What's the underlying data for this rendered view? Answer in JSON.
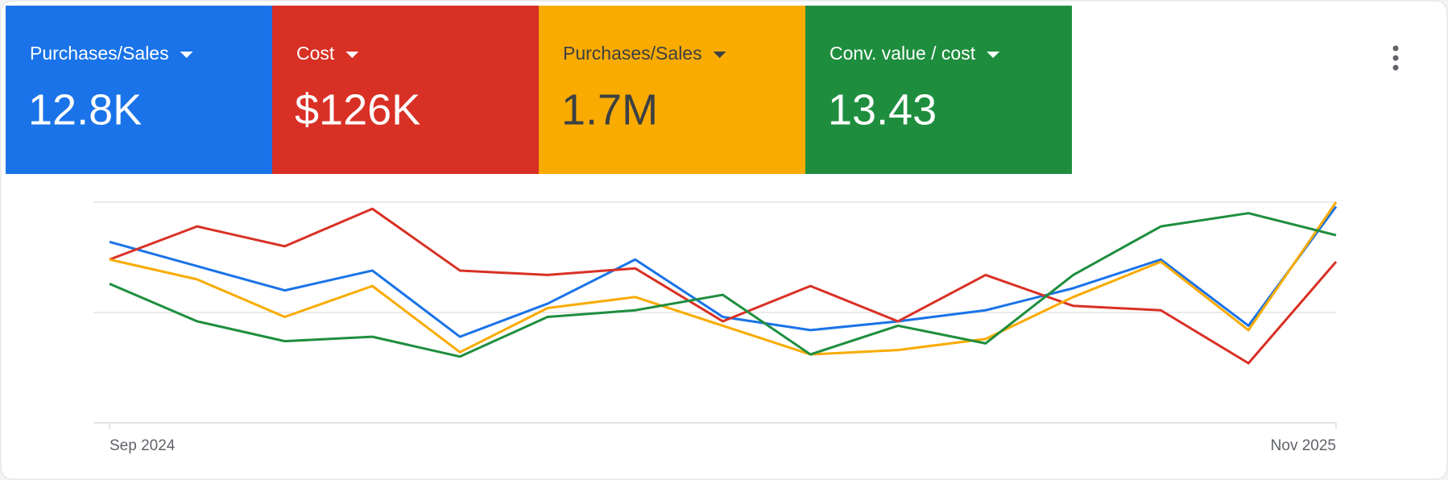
{
  "tiles": [
    {
      "label": "Purchases/Sales",
      "value": "12.8K",
      "color": "#1a73e8",
      "text_color": "#ffffff"
    },
    {
      "label": "Cost",
      "value": "$126K",
      "color": "#d93025",
      "text_color": "#ffffff"
    },
    {
      "label": "Purchases/Sales",
      "value": "1.7M",
      "color": "#f9ab00",
      "text_color": "#3c4043"
    },
    {
      "label": "Conv. value / cost",
      "value": "13.43",
      "color": "#1e8e3e",
      "text_color": "#ffffff"
    }
  ],
  "chart_data": {
    "type": "line",
    "categories": [
      "Sep 2024",
      null,
      null,
      null,
      null,
      null,
      null,
      null,
      null,
      null,
      null,
      null,
      null,
      null,
      "Nov 2025"
    ],
    "series": [
      {
        "color": "#1a73e8",
        "values": [
          82,
          71,
          60,
          69,
          39,
          54,
          74,
          48,
          42,
          46,
          51,
          61,
          74,
          44,
          98
        ]
      },
      {
        "color": "#d93025",
        "values": [
          74,
          89,
          80,
          97,
          69,
          67,
          70,
          46,
          62,
          46,
          67,
          53,
          51,
          27,
          73
        ]
      },
      {
        "color": "#f9ab00",
        "values": [
          74,
          65,
          48,
          62,
          32,
          52,
          57,
          44,
          31,
          33,
          38,
          57,
          73,
          42,
          100
        ]
      },
      {
        "color": "#1e8e3e",
        "values": [
          63,
          46,
          37,
          39,
          30,
          48,
          51,
          58,
          31,
          44,
          36,
          67,
          89,
          95,
          85
        ]
      }
    ],
    "ylim": [
      0,
      100
    ],
    "yticks": [
      0,
      50,
      100
    ],
    "grid": true
  }
}
